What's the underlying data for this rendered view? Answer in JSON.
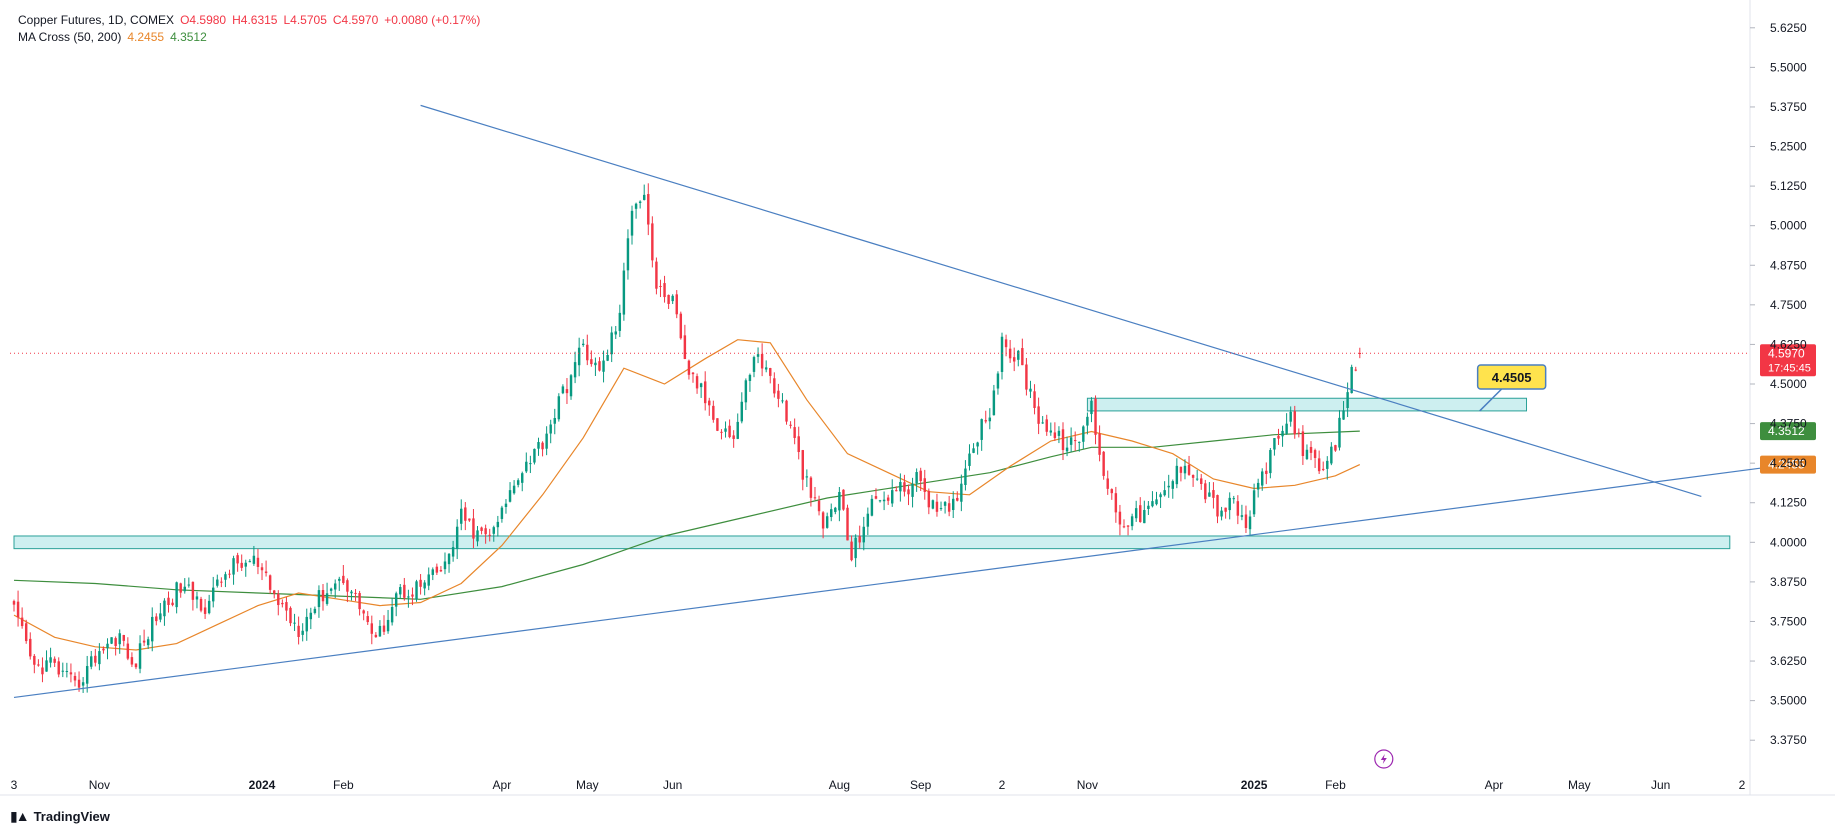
{
  "legend": {
    "symbol": "Copper Futures, 1D, COMEX",
    "open": "O4.5980",
    "high": "H4.6315",
    "low": "L4.5705",
    "close": "C4.5970",
    "change": "+0.0080 (+0.17%)",
    "ma_label": "MA Cross (50, 200)",
    "ma50_value": "4.2455",
    "ma200_value": "4.3512"
  },
  "footer": {
    "brand": "TradingView"
  },
  "colors": {
    "up": "#089981",
    "down": "#f23645",
    "trend": "#4a7fc1",
    "ma50": "#e8862a",
    "ma200": "#3e8e3e",
    "zone_fill": "#cdeff0",
    "zone_stroke": "#2aa198"
  },
  "chart_data": {
    "type": "candlestick",
    "title": "Copper Futures, 1D, COMEX",
    "ylim": [
      3.3125,
      5.6875
    ],
    "y_ticks": [
      "3.3750",
      "3.5000",
      "3.6250",
      "3.7500",
      "3.8750",
      "4.0000",
      "4.1250",
      "4.2500",
      "4.3750",
      "4.5000",
      "4.6250",
      "4.7500",
      "4.8750",
      "5.0000",
      "5.1250",
      "5.2500",
      "5.3750",
      "5.5000",
      "5.6250"
    ],
    "x_ticks": [
      {
        "label": "3",
        "t": 0,
        "bold": false
      },
      {
        "label": "Nov",
        "t": 21,
        "bold": false
      },
      {
        "label": "2024",
        "t": 61,
        "bold": true
      },
      {
        "label": "Feb",
        "t": 81,
        "bold": false
      },
      {
        "label": "Apr",
        "t": 120,
        "bold": false
      },
      {
        "label": "May",
        "t": 141,
        "bold": false
      },
      {
        "label": "Jun",
        "t": 162,
        "bold": false
      },
      {
        "label": "Aug",
        "t": 203,
        "bold": false
      },
      {
        "label": "Sep",
        "t": 223,
        "bold": false
      },
      {
        "label": "2",
        "t": 243,
        "bold": false
      },
      {
        "label": "Nov",
        "t": 264,
        "bold": false
      },
      {
        "label": "2025",
        "t": 305,
        "bold": true
      },
      {
        "label": "Feb",
        "t": 325,
        "bold": false
      },
      {
        "label": "Apr",
        "t": 364,
        "bold": false
      },
      {
        "label": "May",
        "t": 385,
        "bold": false
      },
      {
        "label": "Jun",
        "t": 405,
        "bold": false
      },
      {
        "label": "2",
        "t": 425,
        "bold": false
      }
    ],
    "last_price": {
      "value": 4.597,
      "label": "4.5970",
      "countdown": "17:45:45"
    },
    "ma_badges": [
      {
        "name": "MA 200",
        "value": 4.3512,
        "label": "4.3512"
      },
      {
        "name": "MA 50",
        "value": 4.2455,
        "label": "4.2455"
      }
    ],
    "anchors": [
      {
        "t": 0,
        "p": 3.78
      },
      {
        "t": 5,
        "p": 3.6
      },
      {
        "t": 9,
        "p": 3.62
      },
      {
        "t": 15,
        "p": 3.54
      },
      {
        "t": 21,
        "p": 3.66
      },
      {
        "t": 26,
        "p": 3.71
      },
      {
        "t": 29,
        "p": 3.6
      },
      {
        "t": 35,
        "p": 3.77
      },
      {
        "t": 41,
        "p": 3.86
      },
      {
        "t": 47,
        "p": 3.8
      },
      {
        "t": 53,
        "p": 3.92
      },
      {
        "t": 59,
        "p": 3.94
      },
      {
        "t": 64,
        "p": 3.83
      },
      {
        "t": 70,
        "p": 3.73
      },
      {
        "t": 76,
        "p": 3.84
      },
      {
        "t": 81,
        "p": 3.89
      },
      {
        "t": 86,
        "p": 3.78
      },
      {
        "t": 89,
        "p": 3.68
      },
      {
        "t": 94,
        "p": 3.84
      },
      {
        "t": 100,
        "p": 3.86
      },
      {
        "t": 106,
        "p": 3.92
      },
      {
        "t": 110,
        "p": 4.08
      },
      {
        "t": 114,
        "p": 4.02
      },
      {
        "t": 118,
        "p": 4.03
      },
      {
        "t": 124,
        "p": 4.22
      },
      {
        "t": 130,
        "p": 4.32
      },
      {
        "t": 135,
        "p": 4.47
      },
      {
        "t": 140,
        "p": 4.62
      },
      {
        "t": 144,
        "p": 4.53
      },
      {
        "t": 149,
        "p": 4.72
      },
      {
        "t": 152,
        "p": 5.07
      },
      {
        "t": 155,
        "p": 5.11
      },
      {
        "t": 158,
        "p": 4.8
      },
      {
        "t": 162,
        "p": 4.76
      },
      {
        "t": 165,
        "p": 4.56
      },
      {
        "t": 168,
        "p": 4.5
      },
      {
        "t": 173,
        "p": 4.38
      },
      {
        "t": 177,
        "p": 4.33
      },
      {
        "t": 182,
        "p": 4.6
      },
      {
        "t": 186,
        "p": 4.52
      },
      {
        "t": 190,
        "p": 4.4
      },
      {
        "t": 195,
        "p": 4.18
      },
      {
        "t": 199,
        "p": 4.05
      },
      {
        "t": 203,
        "p": 4.15
      },
      {
        "t": 206,
        "p": 3.95
      },
      {
        "t": 210,
        "p": 4.1
      },
      {
        "t": 214,
        "p": 4.15
      },
      {
        "t": 219,
        "p": 4.17
      },
      {
        "t": 223,
        "p": 4.2
      },
      {
        "t": 227,
        "p": 4.08
      },
      {
        "t": 231,
        "p": 4.12
      },
      {
        "t": 236,
        "p": 4.32
      },
      {
        "t": 240,
        "p": 4.42
      },
      {
        "t": 243,
        "p": 4.62
      },
      {
        "t": 247,
        "p": 4.58
      },
      {
        "t": 252,
        "p": 4.4
      },
      {
        "t": 256,
        "p": 4.33
      },
      {
        "t": 261,
        "p": 4.3
      },
      {
        "t": 265,
        "p": 4.43
      },
      {
        "t": 268,
        "p": 4.22
      },
      {
        "t": 272,
        "p": 4.07
      },
      {
        "t": 276,
        "p": 4.08
      },
      {
        "t": 281,
        "p": 4.12
      },
      {
        "t": 285,
        "p": 4.2
      },
      {
        "t": 288,
        "p": 4.26
      },
      {
        "t": 292,
        "p": 4.18
      },
      {
        "t": 296,
        "p": 4.1
      },
      {
        "t": 300,
        "p": 4.12
      },
      {
        "t": 303,
        "p": 4.05
      },
      {
        "t": 306,
        "p": 4.18
      },
      {
        "t": 310,
        "p": 4.3
      },
      {
        "t": 314,
        "p": 4.4
      },
      {
        "t": 318,
        "p": 4.27
      },
      {
        "t": 322,
        "p": 4.22
      },
      {
        "t": 325,
        "p": 4.3
      },
      {
        "t": 327,
        "p": 4.44
      },
      {
        "t": 329,
        "p": 4.53
      },
      {
        "t": 331,
        "p": 4.597
      }
    ],
    "ma50_points": [
      {
        "t": 0,
        "p": 3.77
      },
      {
        "t": 10,
        "p": 3.7
      },
      {
        "t": 20,
        "p": 3.67
      },
      {
        "t": 30,
        "p": 3.66
      },
      {
        "t": 40,
        "p": 3.68
      },
      {
        "t": 50,
        "p": 3.74
      },
      {
        "t": 60,
        "p": 3.8
      },
      {
        "t": 70,
        "p": 3.84
      },
      {
        "t": 80,
        "p": 3.82
      },
      {
        "t": 90,
        "p": 3.8
      },
      {
        "t": 100,
        "p": 3.81
      },
      {
        "t": 110,
        "p": 3.87
      },
      {
        "t": 120,
        "p": 3.99
      },
      {
        "t": 130,
        "p": 4.15
      },
      {
        "t": 140,
        "p": 4.33
      },
      {
        "t": 150,
        "p": 4.55
      },
      {
        "t": 160,
        "p": 4.5
      },
      {
        "t": 170,
        "p": 4.58
      },
      {
        "t": 178,
        "p": 4.64
      },
      {
        "t": 186,
        "p": 4.63
      },
      {
        "t": 195,
        "p": 4.45
      },
      {
        "t": 205,
        "p": 4.28
      },
      {
        "t": 215,
        "p": 4.22
      },
      {
        "t": 225,
        "p": 4.16
      },
      {
        "t": 235,
        "p": 4.15
      },
      {
        "t": 245,
        "p": 4.24
      },
      {
        "t": 255,
        "p": 4.32
      },
      {
        "t": 265,
        "p": 4.35
      },
      {
        "t": 275,
        "p": 4.32
      },
      {
        "t": 285,
        "p": 4.28
      },
      {
        "t": 295,
        "p": 4.2
      },
      {
        "t": 305,
        "p": 4.17
      },
      {
        "t": 315,
        "p": 4.18
      },
      {
        "t": 325,
        "p": 4.21
      },
      {
        "t": 331,
        "p": 4.2455
      }
    ],
    "ma200_points": [
      {
        "t": 0,
        "p": 3.88
      },
      {
        "t": 20,
        "p": 3.87
      },
      {
        "t": 40,
        "p": 3.85
      },
      {
        "t": 60,
        "p": 3.84
      },
      {
        "t": 80,
        "p": 3.83
      },
      {
        "t": 100,
        "p": 3.82
      },
      {
        "t": 120,
        "p": 3.86
      },
      {
        "t": 140,
        "p": 3.93
      },
      {
        "t": 160,
        "p": 4.02
      },
      {
        "t": 180,
        "p": 4.08
      },
      {
        "t": 200,
        "p": 4.14
      },
      {
        "t": 220,
        "p": 4.18
      },
      {
        "t": 240,
        "p": 4.22
      },
      {
        "t": 255,
        "p": 4.27
      },
      {
        "t": 265,
        "p": 4.3
      },
      {
        "t": 280,
        "p": 4.3
      },
      {
        "t": 295,
        "p": 4.32
      },
      {
        "t": 310,
        "p": 4.34
      },
      {
        "t": 331,
        "p": 4.3512
      }
    ],
    "trendlines": [
      {
        "name": "upper-trendline",
        "t1": 100,
        "p1": 5.38,
        "t2": 415,
        "p2": 4.145
      },
      {
        "name": "lower-trendline",
        "t1": 0,
        "p1": 3.51,
        "t2": 433,
        "p2": 4.24
      }
    ],
    "zones": [
      {
        "name": "support-zone",
        "t1": 0,
        "t2": 422,
        "p_low": 3.98,
        "p_high": 4.02
      },
      {
        "name": "breakout-zone",
        "t1": 264,
        "t2": 372,
        "p_low": 4.415,
        "p_high": 4.455
      }
    ],
    "callout": {
      "label": "4.4505",
      "value": 4.4505,
      "t": 359
    }
  }
}
